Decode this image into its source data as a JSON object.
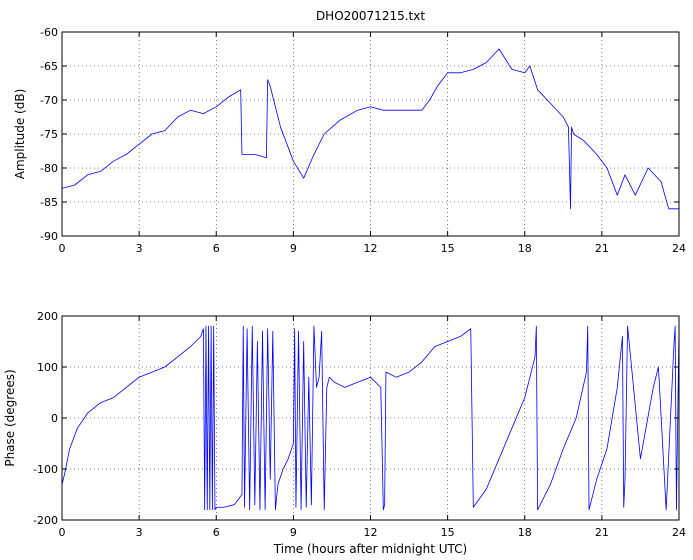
{
  "chart_data": [
    {
      "type": "line",
      "title": "DHO20071215.txt",
      "xlabel": "",
      "ylabel": "Amplitude (dB)",
      "xlim": [
        0,
        24
      ],
      "ylim": [
        -90,
        -60
      ],
      "xticks": [
        0,
        3,
        6,
        9,
        12,
        15,
        18,
        21,
        24
      ],
      "yticks": [
        -90,
        -85,
        -80,
        -75,
        -70,
        -65,
        -60
      ],
      "grid": true,
      "color": "#0000ff",
      "series": [
        {
          "x": [
            0,
            0.5,
            1,
            1.5,
            2,
            2.5,
            3,
            3.5,
            4,
            4.5,
            5,
            5.5,
            6,
            6.5,
            6.95,
            7.0,
            7.5,
            7.95,
            8.0,
            8.1,
            8.5,
            9.0,
            9.4,
            9.8,
            10.2,
            10.8,
            11.5,
            12,
            12.5,
            13,
            13.5,
            14,
            14.3,
            14.6,
            15,
            15.5,
            16,
            16.5,
            17,
            17.5,
            18,
            18.2,
            18.5,
            19,
            19.5,
            19.7,
            19.78,
            19.82,
            19.9,
            20.3,
            20.8,
            21.2,
            21.6,
            21.9,
            22.3,
            22.8,
            23.3,
            23.6,
            24
          ],
          "y": [
            -83,
            -82.5,
            -81,
            -80.5,
            -79,
            -78,
            -76.5,
            -75,
            -74.5,
            -72.5,
            -71.5,
            -72,
            -71,
            -69.5,
            -68.5,
            -78,
            -78,
            -78.5,
            -67,
            -68,
            -74,
            -79,
            -81.5,
            -78,
            -75,
            -73,
            -71.5,
            -71,
            -71.5,
            -71.5,
            -71.5,
            -71.5,
            -70,
            -68,
            -66,
            -66,
            -65.5,
            -64.5,
            -62.5,
            -65.5,
            -66,
            -65,
            -68.5,
            -70.5,
            -72.5,
            -74,
            -86,
            -74,
            -75,
            -76,
            -78,
            -80,
            -84,
            -81,
            -84,
            -80,
            -82,
            -86,
            -86
          ]
        }
      ]
    },
    {
      "type": "line",
      "title": "",
      "xlabel": "Time (hours after midnight UTC)",
      "ylabel": "Phase (degrees)",
      "xlim": [
        0,
        24
      ],
      "ylim": [
        -200,
        200
      ],
      "xticks": [
        0,
        3,
        6,
        9,
        12,
        15,
        18,
        21,
        24
      ],
      "yticks": [
        -200,
        -100,
        0,
        100,
        200
      ],
      "grid": true,
      "color": "#0000ff",
      "series": [
        {
          "x": [
            0,
            0.1,
            0.3,
            0.6,
            1,
            1.5,
            2,
            2.5,
            3,
            3.5,
            4,
            4.5,
            5,
            5.4,
            5.5,
            5.55,
            5.6,
            5.65,
            5.7,
            5.75,
            5.8,
            5.85,
            5.9,
            5.95,
            6.0,
            6.3,
            6.7,
            7.0,
            7.05,
            7.1,
            7.2,
            7.3,
            7.4,
            7.5,
            7.6,
            7.7,
            7.8,
            7.9,
            8.0,
            8.1,
            8.2,
            8.3,
            8.4,
            8.6,
            8.8,
            9.0,
            9.05,
            9.1,
            9.2,
            9.3,
            9.4,
            9.5,
            9.6,
            9.7,
            9.8,
            9.9,
            10.0,
            10.1,
            10.2,
            10.3,
            10.4,
            10.6,
            11,
            11.5,
            12,
            12.4,
            12.5,
            12.55,
            12.6,
            13,
            13.5,
            14,
            14.5,
            15,
            15.5,
            15.9,
            16.0,
            16.5,
            17,
            17.5,
            18,
            18.4,
            18.45,
            18.5,
            19,
            19.5,
            20,
            20.4,
            20.45,
            20.5,
            20.8,
            21.2,
            21.6,
            21.8,
            21.85,
            21.9,
            22,
            22.5,
            23,
            23.2,
            23.5,
            23.8,
            23.85,
            23.9,
            24
          ],
          "y": [
            -130,
            -110,
            -60,
            -20,
            10,
            30,
            40,
            60,
            80,
            90,
            100,
            120,
            140,
            160,
            175,
            -180,
            180,
            -180,
            180,
            -180,
            180,
            -180,
            180,
            -180,
            -175,
            -175,
            -170,
            -150,
            180,
            -175,
            175,
            -180,
            180,
            -170,
            150,
            -180,
            170,
            -180,
            175,
            -120,
            170,
            -180,
            -130,
            -100,
            -80,
            -50,
            175,
            -175,
            170,
            -180,
            150,
            -175,
            80,
            -170,
            180,
            60,
            80,
            170,
            -180,
            60,
            80,
            70,
            60,
            70,
            80,
            60,
            -180,
            -170,
            90,
            80,
            90,
            110,
            140,
            150,
            160,
            175,
            -175,
            -140,
            -80,
            -20,
            40,
            120,
            180,
            -180,
            -130,
            -60,
            0,
            90,
            180,
            -180,
            -120,
            -60,
            60,
            160,
            -175,
            -120,
            180,
            -80,
            60,
            100,
            -180,
            140,
            180,
            -180,
            180
          ],
          "name": ""
        }
      ]
    }
  ]
}
